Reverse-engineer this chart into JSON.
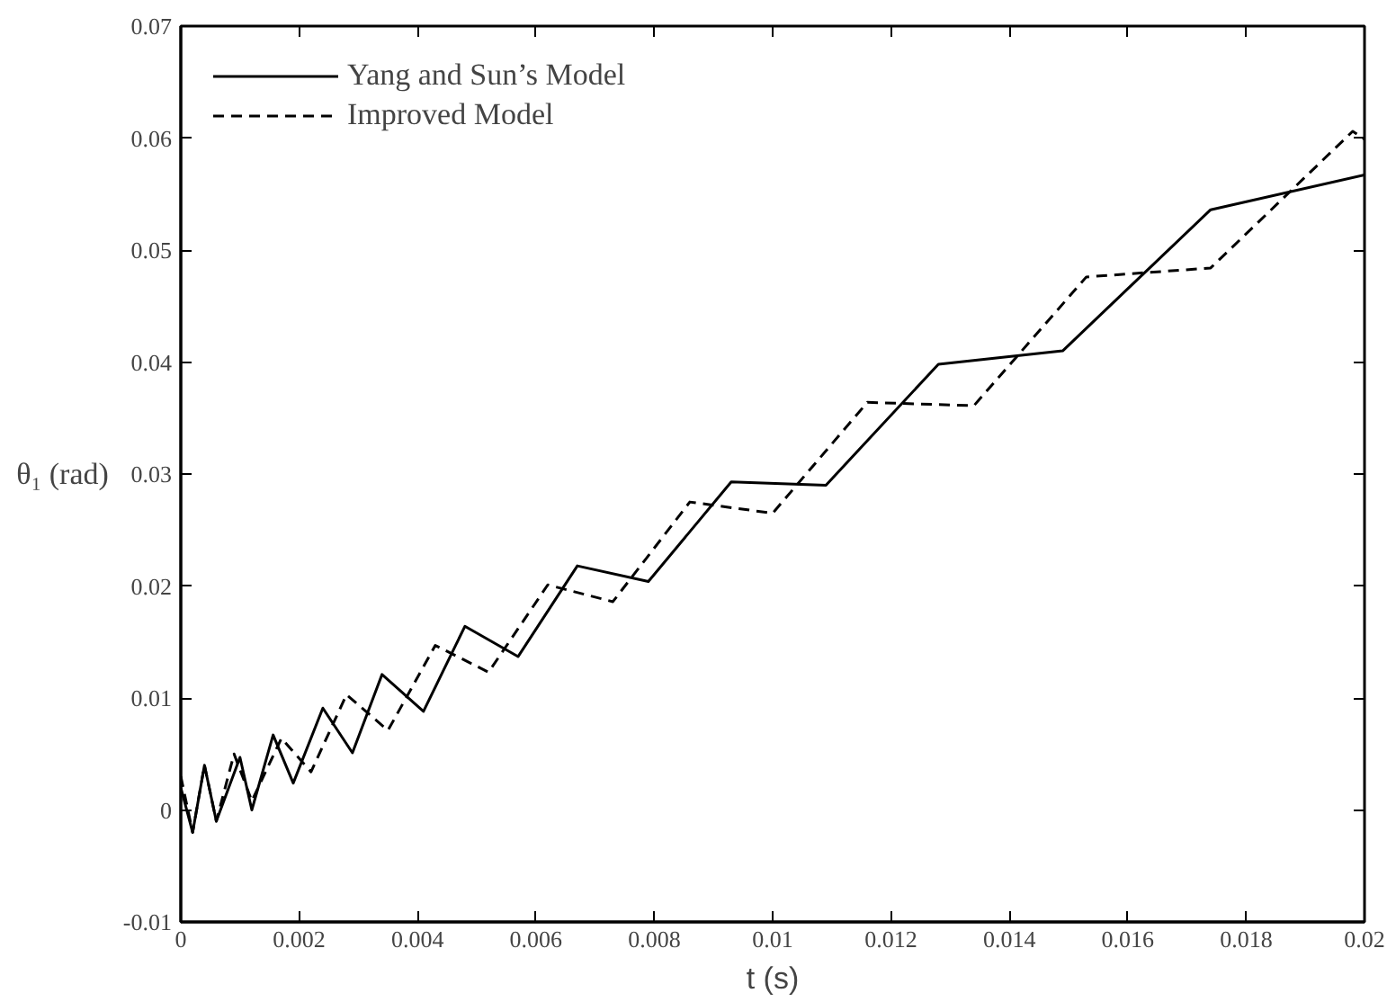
{
  "chart_data": {
    "type": "line",
    "xlabel": "t (s)",
    "ylabel": "θ₁ (rad)",
    "xlim": [
      0,
      0.02
    ],
    "ylim": [
      -0.01,
      0.07
    ],
    "xticks": [
      0,
      0.002,
      0.004,
      0.006,
      0.008,
      0.01,
      0.012,
      0.014,
      0.016,
      0.018,
      0.02
    ],
    "yticks": [
      -0.01,
      0,
      0.01,
      0.02,
      0.03,
      0.04,
      0.05,
      0.06,
      0.07
    ],
    "grid": false,
    "legend": "top left",
    "marker": "none",
    "series": [
      {
        "name": "Yang and Sun’s Model",
        "color": "#000000",
        "line_style": "solid",
        "x": [
          0,
          0.0002,
          0.0004,
          0.0006,
          0.001,
          0.0012,
          0.00156,
          0.0019,
          0.0024,
          0.0029,
          0.0034,
          0.0041,
          0.0048,
          0.0057,
          0.0067,
          0.0079,
          0.0093,
          0.0109,
          0.0128,
          0.0149,
          0.0174,
          0.02
        ],
        "values": [
          0.002,
          -0.002,
          0.004,
          -0.001,
          0.0047,
          0.0,
          0.0067,
          0.0024,
          0.0091,
          0.0051,
          0.0121,
          0.0088,
          0.0164,
          0.0137,
          0.0218,
          0.0204,
          0.0293,
          0.029,
          0.0398,
          0.041,
          0.0536,
          0.0567
        ]
      },
      {
        "name": "Improved Model",
        "color": "#000000",
        "line_style": "dashed",
        "x": [
          0,
          0.0002,
          0.0004,
          0.0006,
          0.0009,
          0.0012,
          0.0017,
          0.0022,
          0.0028,
          0.0035,
          0.0043,
          0.0052,
          0.0062,
          0.0073,
          0.0086,
          0.01,
          0.0116,
          0.0134,
          0.0153,
          0.0174,
          0.0198,
          0.02
        ],
        "values": [
          0.003,
          -0.002,
          0.004,
          -0.001,
          0.005,
          0.0008,
          0.0064,
          0.0034,
          0.0103,
          0.0071,
          0.0147,
          0.0123,
          0.0201,
          0.0186,
          0.0275,
          0.0265,
          0.0364,
          0.0361,
          0.0476,
          0.0484,
          0.0606,
          0.0599
        ]
      }
    ]
  }
}
